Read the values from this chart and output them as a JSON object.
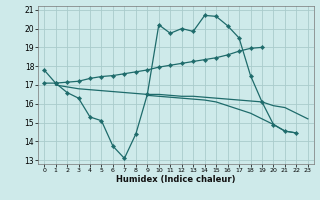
{
  "background_color": "#ceeaea",
  "grid_color": "#aacccc",
  "line_color": "#1e6b6b",
  "xlabel": "Humidex (Indice chaleur)",
  "xlim": [
    -0.5,
    23.5
  ],
  "ylim": [
    12.8,
    21.2
  ],
  "yticks": [
    13,
    14,
    15,
    16,
    17,
    18,
    19,
    20,
    21
  ],
  "xticks": [
    0,
    1,
    2,
    3,
    4,
    5,
    6,
    7,
    8,
    9,
    10,
    11,
    12,
    13,
    14,
    15,
    16,
    17,
    18,
    19,
    20,
    21,
    22,
    23
  ],
  "line1_x": [
    0,
    1,
    2,
    3,
    4,
    5,
    6,
    7,
    8,
    9,
    10,
    11,
    12,
    13,
    14,
    15,
    16,
    17,
    18,
    19,
    20,
    21,
    22,
    23
  ],
  "line1_y": [
    17.8,
    17.1,
    16.6,
    16.3,
    15.3,
    15.1,
    13.75,
    13.1,
    14.4,
    16.5,
    20.2,
    19.75,
    20.0,
    19.85,
    20.7,
    20.65,
    20.15,
    19.5,
    17.5,
    16.1,
    14.9,
    14.55,
    14.45,
    null
  ],
  "line2_x": [
    0,
    1,
    2,
    3,
    4,
    5,
    6,
    7,
    8,
    9,
    10,
    11,
    12,
    13,
    14,
    15,
    16,
    17,
    18,
    19
  ],
  "line2_y": [
    17.1,
    17.1,
    17.15,
    17.2,
    17.35,
    17.45,
    17.5,
    17.6,
    17.7,
    17.8,
    17.95,
    18.05,
    18.15,
    18.25,
    18.35,
    18.45,
    18.6,
    18.8,
    18.95,
    19.0
  ],
  "line3_x": [
    1,
    2,
    3,
    4,
    5,
    6,
    7,
    8,
    9,
    10,
    11,
    12,
    13,
    14,
    15,
    16,
    17,
    18,
    19,
    20,
    21,
    22,
    23
  ],
  "line3_y": [
    17.0,
    16.9,
    16.8,
    16.75,
    16.7,
    16.65,
    16.6,
    16.55,
    16.5,
    16.5,
    16.45,
    16.4,
    16.4,
    16.35,
    16.3,
    16.25,
    16.2,
    16.15,
    16.1,
    15.9,
    15.8,
    15.5,
    15.2
  ],
  "line4_x": [
    9,
    10,
    11,
    12,
    13,
    14,
    15,
    16,
    17,
    18,
    19,
    20,
    21,
    22,
    23
  ],
  "line4_y": [
    16.45,
    16.4,
    16.35,
    16.3,
    16.25,
    16.2,
    16.1,
    15.9,
    15.7,
    15.5,
    15.2,
    14.9,
    14.55,
    14.45,
    null
  ]
}
